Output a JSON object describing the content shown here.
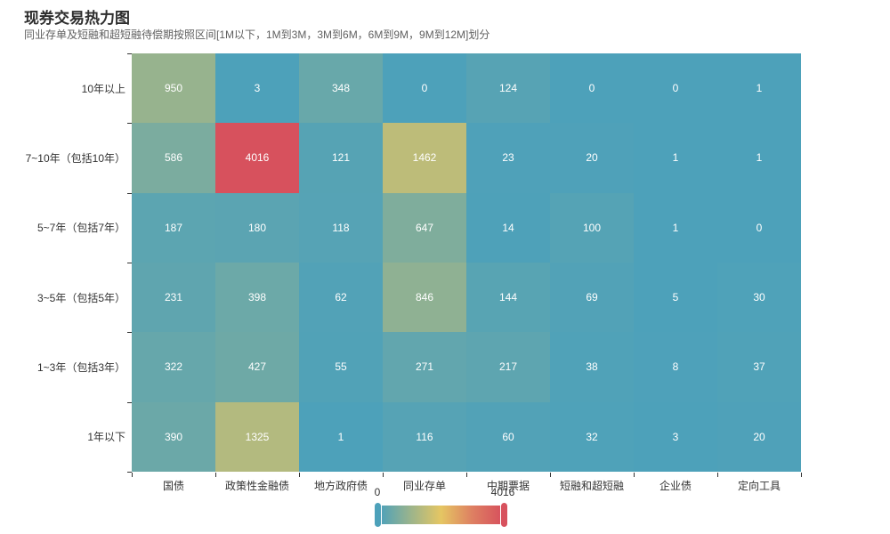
{
  "header": {
    "title": "现券交易热力图",
    "subtitle": "同业存单及短融和超短融待偿期按照区间[1M以下，1M到3M，3M到6M，6M到9M，9M到12M]划分"
  },
  "chart_data": {
    "type": "heatmap",
    "title": "现券交易热力图",
    "x_categories": [
      "国债",
      "政策性金融债",
      "地方政府债",
      "同业存单",
      "中期票据",
      "短融和超短融",
      "企业债",
      "定向工具"
    ],
    "y_categories": [
      "10年以上",
      "7~10年（包括10年）",
      "5~7年（包括7年）",
      "3~5年（包括5年）",
      "1~3年（包括3年）",
      "1年以下"
    ],
    "rows": [
      [
        950,
        3,
        348,
        0,
        124,
        0,
        0,
        1
      ],
      [
        586,
        4016,
        121,
        1462,
        23,
        20,
        1,
        1
      ],
      [
        187,
        180,
        118,
        647,
        14,
        100,
        1,
        0
      ],
      [
        231,
        398,
        62,
        846,
        144,
        69,
        5,
        30
      ],
      [
        322,
        427,
        55,
        271,
        217,
        38,
        8,
        37
      ],
      [
        390,
        1325,
        1,
        116,
        60,
        32,
        3,
        20
      ]
    ],
    "value_min": 0,
    "value_max": 4016,
    "legend_position": "bottom-center",
    "grid_lines": false,
    "visualmap": {
      "min_label": "0",
      "max_label": "4016",
      "orientation": "horizontal",
      "gradient_stops": [
        {
          "pos": 0.0,
          "color": "#4DA1BA"
        },
        {
          "pos": 0.25,
          "color": "#9BB48C"
        },
        {
          "pos": 0.5,
          "color": "#E5C663"
        },
        {
          "pos": 0.75,
          "color": "#DE8162"
        },
        {
          "pos": 1.0,
          "color": "#D7515D"
        }
      ]
    },
    "cell_label_color": "#ffffff",
    "axis_label_color": "#333333"
  }
}
